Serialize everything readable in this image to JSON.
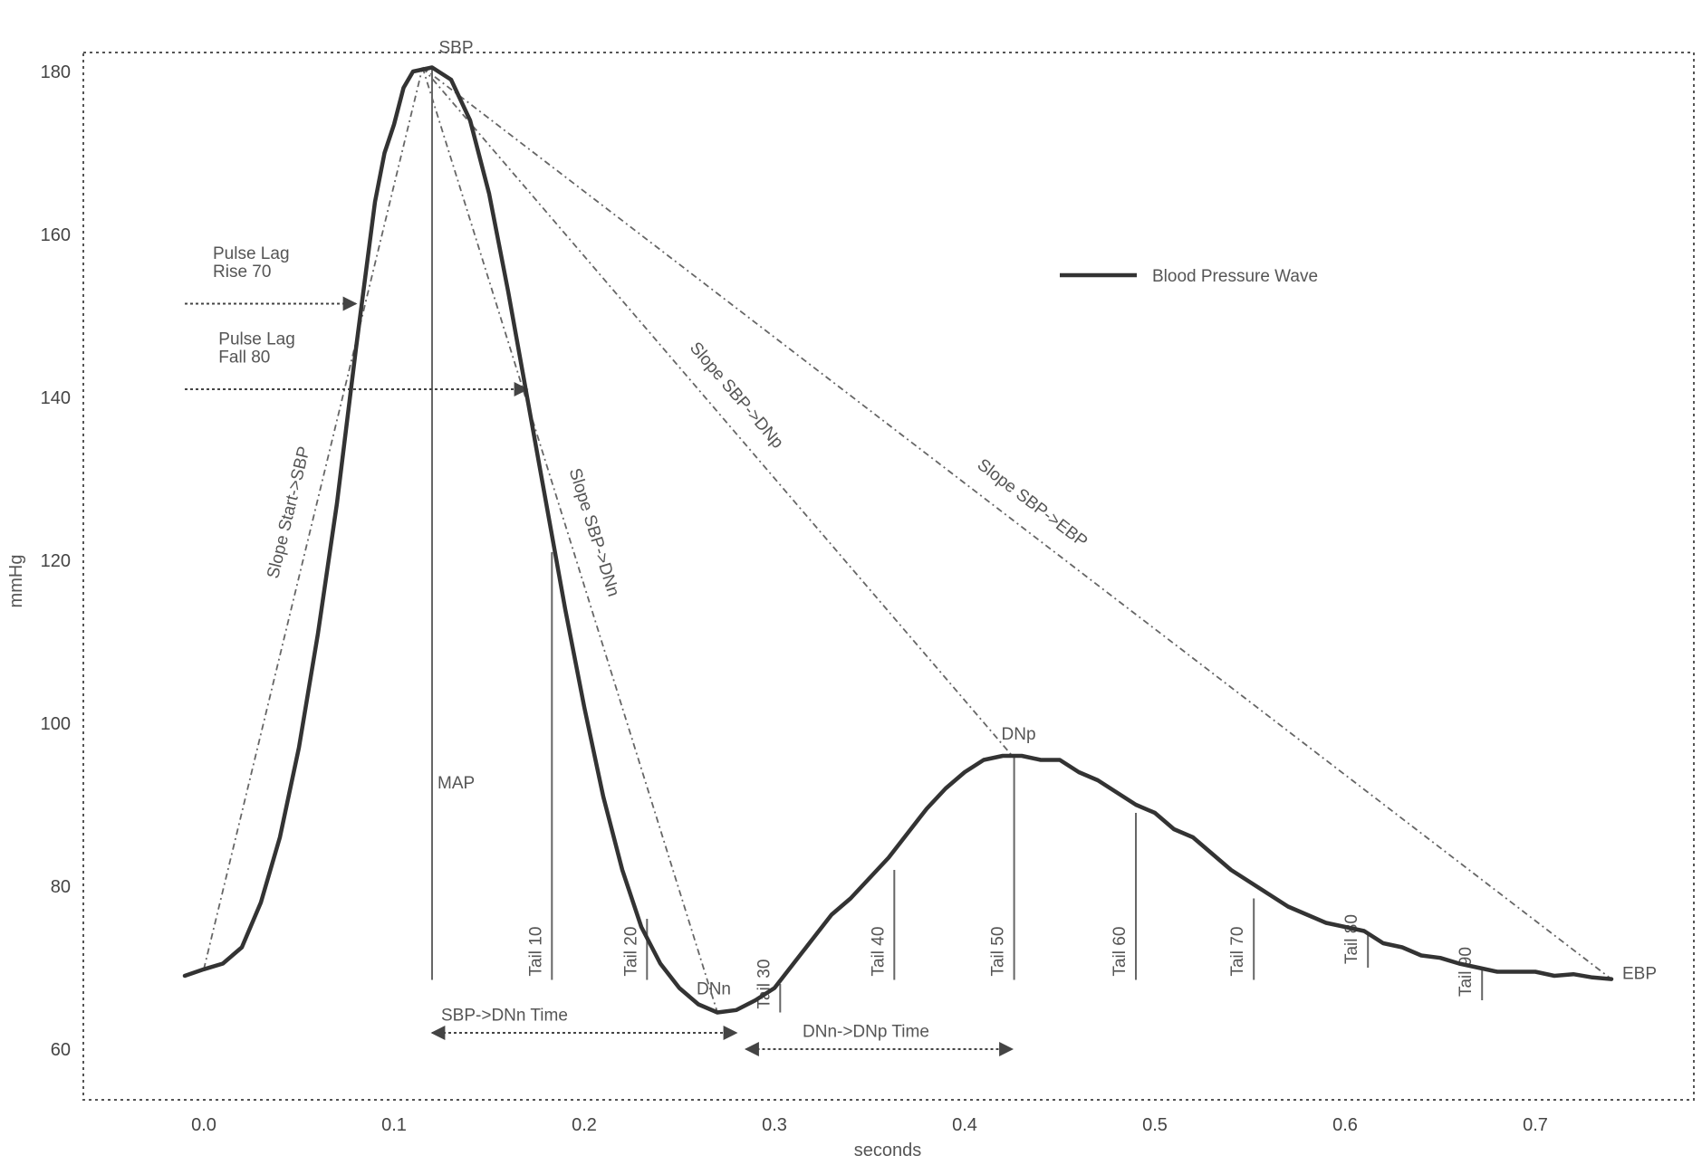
{
  "chart_data": {
    "type": "line",
    "title": "",
    "xlabel": "seconds",
    "ylabel": "mmHg",
    "xlim": [
      -0.05,
      0.78
    ],
    "ylim": [
      54,
      186
    ],
    "x_ticks": [
      0.0,
      0.1,
      0.2,
      0.3,
      0.4,
      0.5,
      0.6,
      0.7
    ],
    "x_tick_labels": [
      "0.0",
      "0.1",
      "0.2",
      "0.3",
      "0.4",
      "0.5",
      "0.6",
      "0.7"
    ],
    "y_ticks": [
      60,
      80,
      100,
      120,
      140,
      160,
      180
    ],
    "y_tick_labels": [
      "60",
      "80",
      "100",
      "120",
      "140",
      "160",
      "180"
    ],
    "grid": false,
    "legend": {
      "position": "top-right",
      "entries": [
        "Blood Pressure Wave"
      ]
    },
    "series": [
      {
        "name": "Blood Pressure Wave",
        "color": "#333333",
        "x": [
          -0.01,
          0.0,
          0.01,
          0.02,
          0.03,
          0.04,
          0.05,
          0.06,
          0.07,
          0.08,
          0.09,
          0.095,
          0.1,
          0.105,
          0.11,
          0.12,
          0.13,
          0.14,
          0.15,
          0.16,
          0.17,
          0.18,
          0.19,
          0.2,
          0.21,
          0.22,
          0.23,
          0.24,
          0.25,
          0.26,
          0.27,
          0.28,
          0.29,
          0.3,
          0.31,
          0.32,
          0.33,
          0.34,
          0.35,
          0.36,
          0.37,
          0.38,
          0.39,
          0.4,
          0.41,
          0.42,
          0.43,
          0.44,
          0.45,
          0.46,
          0.47,
          0.48,
          0.49,
          0.5,
          0.51,
          0.52,
          0.53,
          0.54,
          0.55,
          0.56,
          0.57,
          0.58,
          0.59,
          0.6,
          0.61,
          0.62,
          0.63,
          0.64,
          0.65,
          0.66,
          0.67,
          0.68,
          0.69,
          0.7,
          0.71,
          0.72,
          0.73,
          0.74
        ],
        "y": [
          69,
          69.8,
          70.5,
          72.5,
          78,
          86,
          97,
          111,
          127,
          146,
          164,
          170,
          173.5,
          178,
          180,
          180.5,
          179,
          174,
          165,
          153,
          140,
          127,
          114,
          102,
          91,
          82,
          75,
          70.5,
          67.5,
          65.5,
          64.5,
          64.8,
          66,
          67.5,
          70.5,
          73.5,
          76.5,
          78.5,
          81,
          83.5,
          86.5,
          89.5,
          92,
          94,
          95.5,
          96,
          96,
          95.5,
          95.5,
          94,
          93,
          91.5,
          90,
          89,
          87,
          86,
          84,
          82,
          80.5,
          79,
          77.5,
          76.5,
          75.5,
          75,
          74.5,
          73,
          72.5,
          71.5,
          71.2,
          70.5,
          70,
          69.5,
          69.5,
          69.5,
          69,
          69.2,
          68.8,
          68.6
        ]
      }
    ],
    "points": {
      "SBP": {
        "label": "SBP",
        "x": 0.115,
        "y": 180.5
      },
      "DNn": {
        "label": "DNn",
        "x": 0.28,
        "y": 64.5
      },
      "DNp": {
        "label": "DNp",
        "x": 0.425,
        "y": 96
      },
      "EBP": {
        "label": "EBP",
        "x": 0.74,
        "y": 68.6
      },
      "MAP": {
        "label": "MAP",
        "x": 0.12,
        "y": 92
      }
    },
    "slope_lines": [
      {
        "from": [
          0.0,
          69.8
        ],
        "to": [
          0.115,
          180.5
        ],
        "label": "Slope Start->SBP"
      },
      {
        "from": [
          0.115,
          180.5
        ],
        "to": [
          0.27,
          64.5
        ],
        "label": "Slope SBP->DNn"
      },
      {
        "from": [
          0.115,
          180.5
        ],
        "to": [
          0.425,
          96
        ],
        "label": "Slope SBP->DNp"
      },
      {
        "from": [
          0.115,
          180.5
        ],
        "to": [
          0.74,
          68.6
        ],
        "label": "Slope SBP->EBP"
      }
    ],
    "tail_markers": [
      {
        "label": "Tail 10",
        "x": 0.183,
        "top": 121,
        "bottom": 68.5
      },
      {
        "label": "Tail 20",
        "x": 0.233,
        "top": 76,
        "bottom": 68.5
      },
      {
        "label": "Tail 30",
        "x": 0.303,
        "top": 68,
        "bottom": 64.5
      },
      {
        "label": "Tail 40",
        "x": 0.363,
        "top": 82,
        "bottom": 68.5
      },
      {
        "label": "Tail 50",
        "x": 0.426,
        "top": 95.8,
        "bottom": 68.5
      },
      {
        "label": "Tail 60",
        "x": 0.49,
        "top": 89,
        "bottom": 68.5
      },
      {
        "label": "Tail 70",
        "x": 0.552,
        "top": 78.5,
        "bottom": 68.5
      },
      {
        "label": "Tail 80",
        "x": 0.612,
        "top": 74,
        "bottom": 70
      },
      {
        "label": "Tail 90",
        "x": 0.672,
        "top": 70,
        "bottom": 66
      }
    ],
    "map_line": {
      "x": 0.12,
      "top": 180.5,
      "bottom": 68.5,
      "label": "MAP"
    },
    "arrows": [
      {
        "label_lines": [
          "Pulse Lag",
          "Rise 70"
        ],
        "y": 151.5,
        "x_from": -0.01,
        "x_to": 0.08,
        "heads": "end",
        "label_x": 0.0,
        "label_y": 157
      },
      {
        "label_lines": [
          "Pulse Lag",
          "Fall 80"
        ],
        "y": 141,
        "x_from": -0.01,
        "x_to": 0.17,
        "heads": "end",
        "label_x": 0.003,
        "label_y": 146.5
      },
      {
        "label_lines": [
          "SBP->DNn Time"
        ],
        "y": 62,
        "x_from": 0.12,
        "x_to": 0.28,
        "heads": "both",
        "label_x": 0.12,
        "label_y": 63.5
      },
      {
        "label_lines": [
          "DNn->DNp Time"
        ],
        "y": 60,
        "x_from": 0.285,
        "x_to": 0.425,
        "heads": "both",
        "label_x": 0.31,
        "label_y": 61.5
      }
    ]
  }
}
